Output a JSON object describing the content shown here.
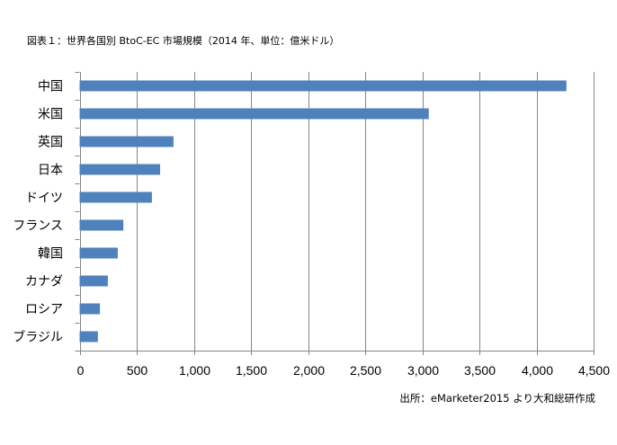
{
  "chart_data": {
    "type": "bar",
    "orientation": "horizontal",
    "title": "図表１：世界各国別 BtoC-EC 市場規模（2014 年、単位：億米ドル）",
    "source": "出所：eMarketer2015 より大和総研作成",
    "categories": [
      "中国",
      "米国",
      "英国",
      "日本",
      "ドイツ",
      "フランス",
      "韓国",
      "カナダ",
      "ロシア",
      "ブラジル"
    ],
    "values": [
      4262,
      3057,
      822,
      705,
      633,
      383,
      334,
      247,
      178,
      160
    ],
    "xlim": [
      0,
      4500
    ],
    "xticks": [
      0,
      500,
      1000,
      1500,
      2000,
      2500,
      3000,
      3500,
      4000,
      4500
    ],
    "xtick_labels": [
      "0",
      "500",
      "1,000",
      "1,500",
      "2,000",
      "2,500",
      "3,000",
      "3,500",
      "4,000",
      "4,500"
    ],
    "bar_color": "#4F81BD",
    "grid": true
  }
}
